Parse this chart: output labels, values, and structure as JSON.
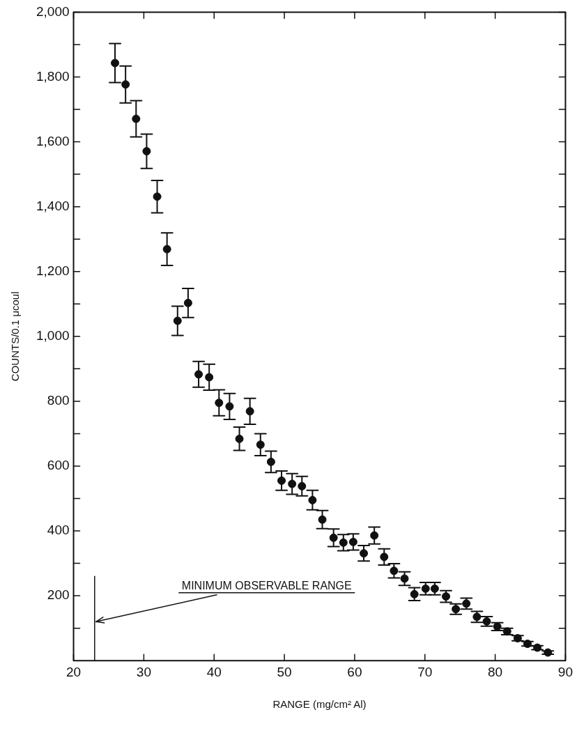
{
  "chart_data": {
    "type": "scatter",
    "xlabel": "RANGE (mg/cm² Al)",
    "ylabel": "COUNTS/0.1 μcoul",
    "x": [
      25.9,
      27.4,
      28.9,
      30.4,
      31.9,
      33.3,
      34.8,
      36.3,
      37.8,
      39.3,
      40.7,
      42.2,
      43.6,
      45.1,
      46.6,
      48.1,
      49.6,
      51.1,
      52.5,
      54.0,
      55.4,
      57.0,
      58.4,
      59.8,
      61.3,
      62.8,
      64.2,
      65.6,
      67.1,
      68.5,
      70.1,
      71.4,
      73.0,
      74.4,
      75.9,
      77.4,
      78.8,
      80.3,
      81.7,
      83.2,
      84.6,
      86.0,
      87.5
    ],
    "values": [
      1843,
      1777,
      1671,
      1571,
      1431,
      1269,
      1048,
      1103,
      883,
      874,
      795,
      784,
      684,
      769,
      666,
      613,
      555,
      545,
      538,
      495,
      435,
      379,
      364,
      366,
      331,
      386,
      320,
      277,
      253,
      205,
      222,
      222,
      198,
      159,
      176,
      135,
      121,
      105,
      90,
      69,
      52,
      40,
      25
    ],
    "errors": [
      60,
      57,
      56,
      53,
      50,
      50,
      45,
      45,
      40,
      40,
      40,
      40,
      36,
      40,
      34,
      33,
      30,
      32,
      30,
      30,
      28,
      27,
      25,
      25,
      24,
      26,
      25,
      22,
      21,
      20,
      19,
      19,
      18,
      16,
      17,
      17,
      15,
      12,
      10,
      8,
      7,
      6,
      5
    ],
    "color": "#111111",
    "marker": "circle",
    "xlim": [
      20,
      90
    ],
    "xticks": [
      20,
      30,
      40,
      50,
      60,
      70,
      80,
      90
    ],
    "ylim": [
      0,
      2000
    ],
    "yticks": [
      {
        "value": 100,
        "label": null
      },
      200,
      {
        "value": 300,
        "label": null
      },
      400,
      {
        "value": 500,
        "label": null
      },
      600,
      {
        "value": 700,
        "label": null
      },
      800,
      {
        "value": 900,
        "label": null
      },
      {
        "value": 1000,
        "label": "1,000"
      },
      {
        "value": 1100,
        "label": null
      },
      {
        "value": 1200,
        "label": "1,200"
      },
      {
        "value": 1300,
        "label": null
      },
      {
        "value": 1400,
        "label": "1,400"
      },
      {
        "value": 1500,
        "label": null
      },
      {
        "value": 1600,
        "label": "1,600"
      },
      {
        "value": 1700,
        "label": null
      },
      {
        "value": 1800,
        "label": "1,800"
      },
      {
        "value": 1900,
        "label": null
      },
      {
        "value": 2000,
        "label": "2,000"
      }
    ],
    "ref_lines": [
      {
        "axis": "x",
        "value": 23,
        "label": "MINIMUM OBSERVABLE RANGE"
      }
    ],
    "legend": false
  }
}
